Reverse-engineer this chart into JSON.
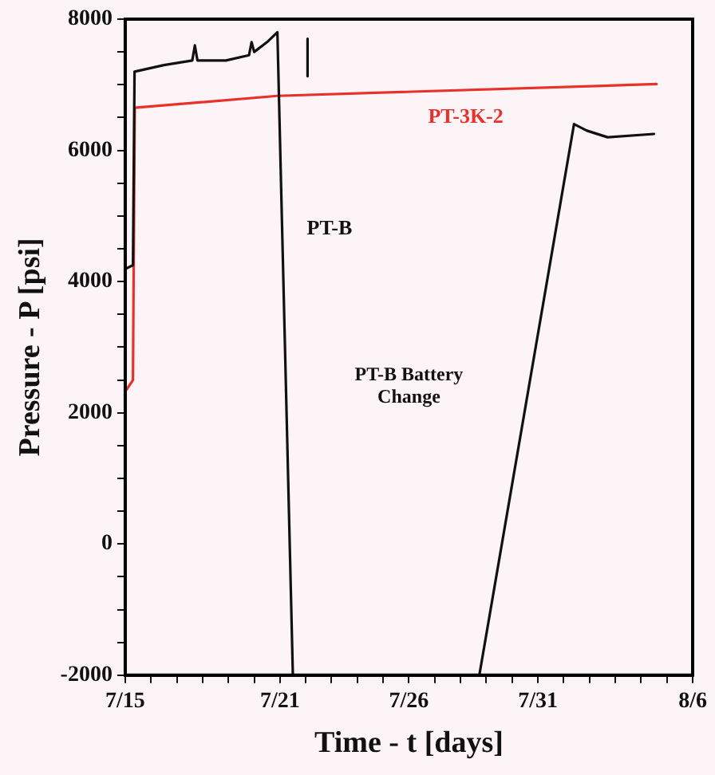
{
  "chart_data": {
    "type": "line",
    "xlabel": "Time - t [days]",
    "ylabel": "Pressure - P [psi]",
    "annotations": [
      "PT-B Battery Change"
    ],
    "xlim": [
      "--07-15",
      "--08-06"
    ],
    "xticks": [
      {
        "value": "--07-15",
        "label": "7/15"
      },
      {
        "value": "--07-16",
        "label": null
      },
      {
        "value": "--07-17",
        "label": null
      },
      {
        "value": "--07-18",
        "label": null
      },
      {
        "value": "--07-19",
        "label": null
      },
      {
        "value": "--07-20",
        "label": null
      },
      {
        "value": "--07-21",
        "label": "7/21"
      },
      {
        "value": "--07-22",
        "label": null
      },
      {
        "value": "--07-23",
        "label": null
      },
      {
        "value": "--07-24",
        "label": null
      },
      {
        "value": "--07-25",
        "label": null
      },
      {
        "value": "--07-26",
        "label": "7/26"
      },
      {
        "value": "--07-27",
        "label": null
      },
      {
        "value": "--07-28",
        "label": null
      },
      {
        "value": "--07-29",
        "label": null
      },
      {
        "value": "--07-30",
        "label": null
      },
      {
        "value": "--07-31",
        "label": "7/31"
      },
      {
        "value": "--08-01",
        "label": null
      },
      {
        "value": "--08-02",
        "label": null
      },
      {
        "value": "--08-03",
        "label": null
      },
      {
        "value": "--08-04",
        "label": null
      },
      {
        "value": "--08-05",
        "label": null
      },
      {
        "value": "--08-06",
        "label": "8/6"
      }
    ],
    "ylim": [
      -2000,
      8000
    ],
    "yticks": [
      -2000,
      {
        "value": -1500,
        "label": null
      },
      {
        "value": -1000,
        "label": null
      },
      {
        "value": -500,
        "label": null
      },
      0,
      {
        "value": 500,
        "label": null
      },
      {
        "value": 1000,
        "label": null
      },
      {
        "value": 1500,
        "label": null
      },
      2000,
      {
        "value": 2500,
        "label": null
      },
      {
        "value": 3000,
        "label": null
      },
      {
        "value": 3500,
        "label": null
      },
      4000,
      {
        "value": 4500,
        "label": null
      },
      {
        "value": 5000,
        "label": null
      },
      {
        "value": 5500,
        "label": null
      },
      6000,
      {
        "value": 6500,
        "label": null
      },
      {
        "value": 7000,
        "label": null
      },
      {
        "value": 7500,
        "label": null
      },
      8000
    ],
    "grid": false,
    "legend": false,
    "marker": "none",
    "line_style": "solid",
    "series": [
      {
        "name": "PT-B",
        "color": "#111111",
        "x": [
          "--07-15T01:12",
          "--07-15T07:12",
          "--07-15T08:40",
          "--07-16T12:00",
          "--07-17T14:24",
          "--07-17T16:48",
          "--07-17T19:12",
          "--07-18T21:36",
          "--07-19T19:12",
          "--07-19T21:36",
          "--07-20T00:00",
          "--07-20T12:00",
          "--07-20T21:36",
          "--07-21T12:00",
          null,
          "--07-22T01:40",
          "--07-22T01:40",
          null,
          "--07-28T17:30",
          "--08-01T09:36",
          "--08-01T21:36",
          "--08-02T16:48",
          "--08-04T12:00"
        ],
        "values": [
          4200,
          4250,
          7200,
          7300,
          7370,
          7600,
          7370,
          7370,
          7450,
          7650,
          7500,
          7650,
          7800,
          -2000,
          null,
          7700,
          7130,
          null,
          -2000,
          6400,
          6300,
          6200,
          6250
        ]
      },
      {
        "name": "PT-3K-2",
        "color": "#e8312a",
        "x": [
          "--07-15T01:12",
          "--07-15T07:12",
          "--07-15T08:50",
          "--07-20T21:36",
          "--08-04T14:24"
        ],
        "values": [
          2350,
          2500,
          6650,
          6830,
          7010
        ]
      }
    ]
  }
}
